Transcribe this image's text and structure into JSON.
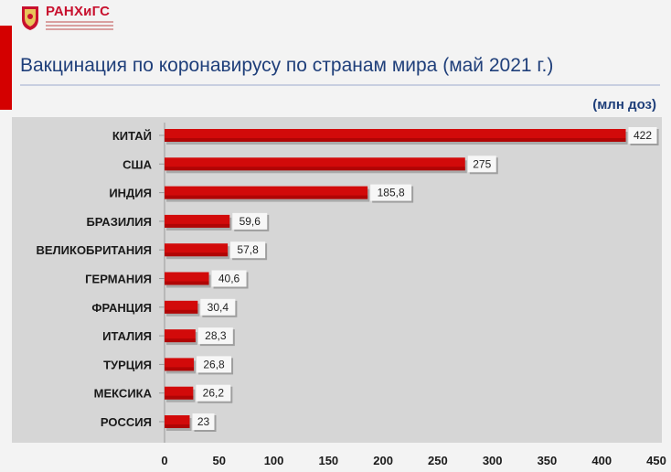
{
  "header": {
    "logo_text": "РАНХиГС",
    "title": "Вакцинация по коронавирусу по странам мира (май 2021 г.)",
    "units": "(млн доз)"
  },
  "colors": {
    "bar": "#d20a0a",
    "bar_dark": "#8e0000",
    "plot_bg": "#d6d6d6",
    "accent": "#d40000",
    "title": "#1f3f7a"
  },
  "chart_data": {
    "type": "bar",
    "orientation": "horizontal",
    "title": "Вакцинация по коронавирусу по странам мира (май 2021 г.)",
    "unit": "(млн доз)",
    "categories": [
      "КИТАЙ",
      "США",
      "ИНДИЯ",
      "БРАЗИЛИЯ",
      "ВЕЛИКОБРИТАНИЯ",
      "ГЕРМАНИЯ",
      "ФРАНЦИЯ",
      "ИТАЛИЯ",
      "ТУРЦИЯ",
      "МЕКСИКА",
      "РОССИЯ"
    ],
    "values": [
      422,
      275,
      185.8,
      59.6,
      57.8,
      40.6,
      30.4,
      28.3,
      26.8,
      26.2,
      23
    ],
    "value_labels": [
      "422",
      "275",
      "185,8",
      "59,6",
      "57,8",
      "40,6",
      "30,4",
      "28,3",
      "26,8",
      "26,2",
      "23"
    ],
    "xlim": [
      0,
      450
    ],
    "xticks": [
      0,
      50,
      100,
      150,
      200,
      250,
      300,
      350,
      400,
      450
    ],
    "grid": false,
    "legend": "none"
  }
}
